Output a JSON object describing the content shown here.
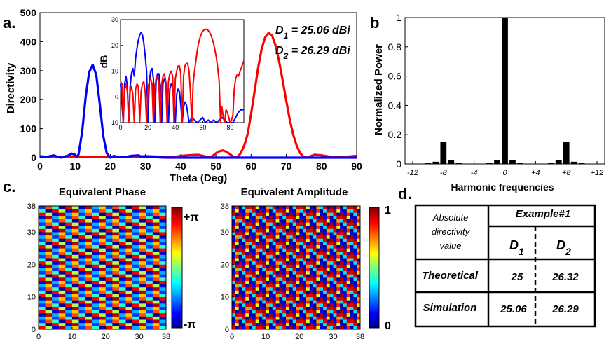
{
  "panels": {
    "a": "a.",
    "b": "b",
    "c": "c.",
    "d": "d."
  },
  "chart_data": [
    {
      "id": "directivity",
      "type": "line",
      "title": "",
      "xlabel": "Theta (Deg)",
      "ylabel": "Directivity",
      "xlim": [
        0,
        90
      ],
      "ylim": [
        0,
        500
      ],
      "xticks": [
        0,
        10,
        20,
        30,
        40,
        50,
        60,
        70,
        80,
        90
      ],
      "yticks": [
        0,
        100,
        200,
        300,
        400,
        500
      ],
      "annotations": [
        "D1 = 25.06 dBi",
        "D2 = 26.29 dBi"
      ],
      "series": [
        {
          "name": "D1",
          "color": "#0000ff",
          "x": [
            0,
            2,
            4,
            5,
            6,
            8,
            9,
            10,
            10.5,
            11,
            12,
            13,
            14,
            15,
            16,
            17,
            18,
            19,
            20,
            21,
            22,
            24,
            26,
            28,
            29,
            30,
            32,
            34,
            36,
            40,
            45,
            50,
            55,
            60,
            65,
            70,
            75,
            80,
            85,
            90
          ],
          "y": [
            1,
            3,
            8,
            3,
            0,
            7,
            14,
            10,
            2,
            12,
            90,
            210,
            295,
            320,
            285,
            185,
            75,
            15,
            0,
            6,
            3,
            2,
            6,
            8,
            2,
            5,
            2,
            1,
            0,
            0,
            0,
            0,
            0,
            0,
            0,
            0,
            0,
            0,
            0,
            0
          ]
        },
        {
          "name": "D2",
          "color": "#ff0000",
          "x": [
            0,
            2,
            5,
            10,
            15,
            20,
            25,
            30,
            35,
            38,
            40,
            42,
            45,
            47,
            48,
            49,
            50,
            51,
            52,
            53,
            54,
            55,
            56,
            57,
            58,
            59,
            60,
            61,
            62,
            63,
            64,
            65,
            66,
            67,
            68,
            69,
            70,
            71,
            72,
            73,
            74,
            75,
            76,
            77,
            78,
            80,
            82,
            84,
            86,
            88,
            90
          ],
          "y": [
            5,
            3,
            2,
            4,
            3,
            2,
            3,
            5,
            3,
            2,
            6,
            8,
            10,
            4,
            1,
            5,
            15,
            22,
            25,
            20,
            12,
            3,
            0,
            15,
            40,
            80,
            150,
            230,
            310,
            375,
            415,
            430,
            420,
            385,
            330,
            265,
            195,
            130,
            78,
            40,
            15,
            2,
            0,
            5,
            10,
            8,
            4,
            2,
            3,
            4,
            6
          ]
        }
      ]
    },
    {
      "id": "directivity-inset-db",
      "type": "line",
      "xlabel": "",
      "ylabel": "dB",
      "xlim": [
        0,
        90
      ],
      "ylim": [
        -10,
        30
      ],
      "xticks": [
        0,
        20,
        40,
        60,
        80
      ],
      "yticks": [
        -10,
        0,
        10,
        20,
        30
      ],
      "series": [
        {
          "name": "D1 (dB)",
          "color": "#0000ff",
          "x": [
            0,
            2,
            3,
            4,
            5,
            6,
            7,
            8,
            9,
            10,
            11,
            12,
            13,
            14,
            15,
            16,
            17,
            18,
            19,
            20,
            21,
            22,
            23,
            24,
            25,
            26,
            27,
            28,
            29,
            30,
            31,
            32,
            33,
            34,
            35,
            36,
            37,
            38,
            39,
            40,
            41,
            42,
            43,
            44,
            45,
            46,
            47,
            48,
            49,
            50,
            52,
            54,
            56,
            58,
            60,
            62,
            64,
            66,
            68,
            70,
            72,
            74,
            76,
            78,
            80,
            82,
            84,
            86,
            88,
            90
          ],
          "y": [
            5,
            -10,
            5,
            8,
            4,
            -10,
            4,
            9,
            11,
            8,
            15,
            19,
            22,
            24,
            25,
            24,
            21,
            16,
            10,
            -10,
            6,
            10,
            11,
            7,
            -10,
            6,
            9,
            9,
            4,
            -10,
            5,
            7,
            6,
            1,
            -10,
            3,
            5,
            4,
            0,
            -10,
            1,
            3,
            2,
            -3,
            -10,
            -4,
            -2,
            -3,
            -6,
            -10,
            -8,
            -9,
            -10,
            -9,
            -8,
            -10,
            -9,
            -10,
            -9,
            -10,
            -9,
            -8,
            -9,
            -10,
            -10,
            -10,
            -8,
            -6,
            -5,
            -5
          ]
        },
        {
          "name": "D2 (dB)",
          "color": "#ff0000",
          "x": [
            0,
            1,
            2,
            3,
            4,
            5,
            6,
            7,
            8,
            9,
            10,
            11,
            12,
            13,
            14,
            15,
            16,
            17,
            18,
            19,
            20,
            21,
            22,
            23,
            24,
            25,
            26,
            27,
            28,
            29,
            30,
            31,
            32,
            33,
            34,
            35,
            36,
            37,
            38,
            39,
            40,
            41,
            42,
            43,
            44,
            45,
            46,
            47,
            48,
            49,
            50,
            51,
            52,
            53,
            54,
            55,
            56,
            57,
            58,
            59,
            60,
            61,
            62,
            63,
            64,
            65,
            66,
            67,
            68,
            69,
            70,
            71,
            72,
            73,
            74,
            75,
            76,
            77,
            78,
            79,
            80,
            81,
            82,
            83,
            84,
            85,
            86,
            87,
            88,
            89,
            90
          ],
          "y": [
            6,
            5,
            -10,
            3,
            5,
            2,
            -10,
            2,
            4,
            1,
            -10,
            3,
            5,
            4,
            -10,
            2,
            5,
            6,
            2,
            -10,
            3,
            6,
            7,
            5,
            -10,
            4,
            7,
            8,
            5,
            -10,
            5,
            8,
            9,
            6,
            -10,
            6,
            9,
            10,
            8,
            -10,
            7,
            10,
            12,
            12,
            9,
            -10,
            8,
            12,
            13,
            13,
            10,
            2,
            -10,
            5,
            10,
            14,
            18,
            21,
            23,
            24.5,
            25.5,
            26,
            26.3,
            26.2,
            25.8,
            25,
            24,
            22.5,
            20.5,
            18,
            15,
            11,
            6,
            -10,
            -4,
            -8,
            -10,
            -5,
            -6,
            -8,
            -10,
            -9,
            -7,
            3,
            7,
            8.5,
            8,
            9.5,
            11,
            12.5,
            14
          ]
        }
      ]
    },
    {
      "id": "harmonics",
      "type": "bar",
      "xlabel": "Harmonic frequencies",
      "ylabel": "Normalized Power",
      "xlim": [
        -13,
        13
      ],
      "ylim": [
        0,
        1
      ],
      "xticks": [
        -12,
        -8,
        -4,
        0,
        4,
        8,
        12
      ],
      "xtick_labels": [
        "-12",
        "-8",
        "-4",
        "0",
        "+4",
        "+8",
        "+12"
      ],
      "yticks": [
        0,
        0.2,
        0.4,
        0.6,
        0.8,
        1
      ],
      "categories": [
        -10,
        -9,
        -8,
        -7,
        -6,
        -2,
        -1,
        0,
        1,
        2,
        6,
        7,
        8,
        9,
        10
      ],
      "values": [
        0.005,
        0.015,
        0.15,
        0.025,
        0.005,
        0.005,
        0.025,
        1.0,
        0.025,
        0.005,
        0.005,
        0.025,
        0.15,
        0.015,
        0.005
      ]
    }
  ],
  "maps": {
    "phase": {
      "title": "Equivalent Phase",
      "cb_top": "+π",
      "cb_bottom": "-π",
      "xticks": [
        0,
        10,
        20,
        30,
        38
      ],
      "yticks": [
        0,
        10,
        20,
        30,
        38
      ]
    },
    "amplitude": {
      "title": "Equivalent Amplitude",
      "cb_top": "1",
      "cb_bottom": "0",
      "xticks": [
        0,
        10,
        20,
        30,
        38
      ],
      "yticks": [
        0,
        10,
        20,
        30,
        38
      ]
    }
  },
  "table": {
    "header_row_label": "Absolute directivity value",
    "example_label": "Example#1",
    "col1": "D",
    "col1_sub": "1",
    "col2": "D",
    "col2_sub": "2",
    "rows": [
      {
        "label": "Theoretical",
        "d1": "25",
        "d2": "26.32"
      },
      {
        "label": "Simulation",
        "d1": "25.06",
        "d2": "26.29"
      }
    ]
  }
}
